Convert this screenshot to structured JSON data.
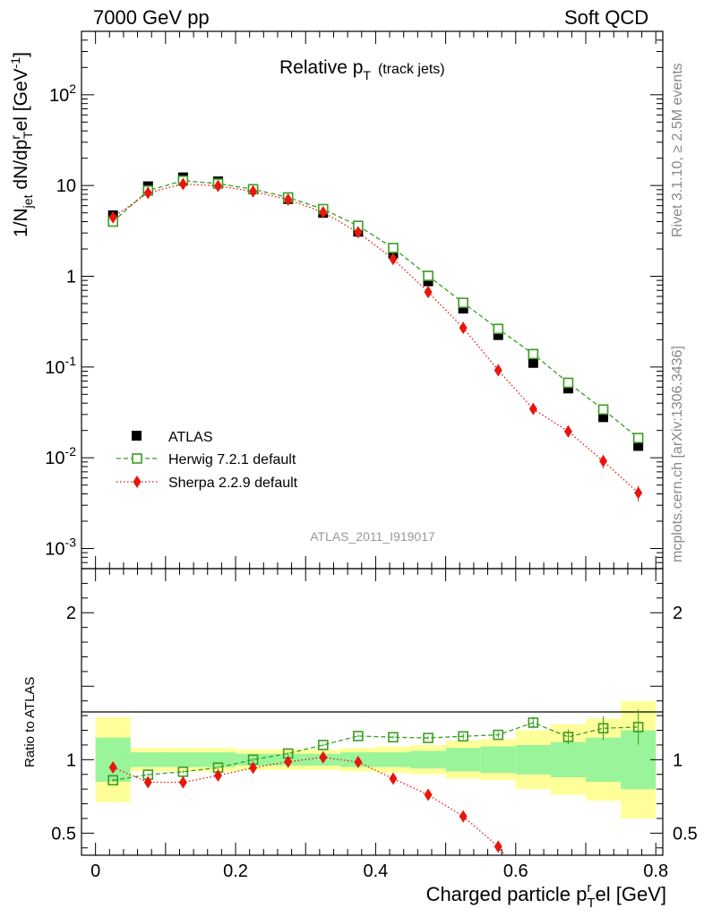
{
  "header": {
    "left": "7000 GeV pp",
    "right": "Soft QCD"
  },
  "side_labels": {
    "rivet": "Rivet 3.1.10, ≥ 2.5M events",
    "mcplots": "mcplots.cern.ch [arXiv:1306.3436]"
  },
  "chart_data": [
    {
      "type": "scatter",
      "title": "Relative pT (track jets)",
      "title_main": "Relative p",
      "title_sub": "T",
      "title_extra": "(track jets)",
      "analysis_label": "ATLAS_2011_I919017",
      "ylabel": "1/Njet dN/dprTel [GeV-1]",
      "yscale": "log",
      "ylim": [
        0.0006,
        500
      ],
      "xlim": [
        -0.02,
        0.81
      ],
      "grid": false,
      "legend_position": "bottom-left",
      "y_tick_labels": [
        "10^-3",
        "10^-2",
        "10^-1",
        "1",
        "10",
        "10^2"
      ],
      "x": [
        0.025,
        0.075,
        0.125,
        0.175,
        0.225,
        0.275,
        0.325,
        0.375,
        0.425,
        0.475,
        0.525,
        0.575,
        0.625,
        0.675,
        0.725,
        0.775
      ],
      "series": [
        {
          "name": "ATLAS",
          "style": "black filled square markers",
          "color": "#000000",
          "values": [
            4.7,
            9.8,
            12.3,
            11.1,
            9.1,
            7.1,
            5.0,
            3.1,
            1.78,
            0.88,
            0.44,
            0.225,
            0.111,
            0.058,
            0.028,
            0.0135
          ],
          "error_band_total": [
            0.29,
            0.08,
            0.08,
            0.08,
            0.07,
            0.07,
            0.07,
            0.08,
            0.09,
            0.1,
            0.13,
            0.14,
            0.2,
            0.24,
            0.28,
            0.4
          ],
          "error_band_stat": [
            0.15,
            0.05,
            0.05,
            0.05,
            0.04,
            0.04,
            0.04,
            0.05,
            0.05,
            0.06,
            0.08,
            0.09,
            0.1,
            0.12,
            0.15,
            0.2
          ]
        },
        {
          "name": "Herwig 7.2.1 default",
          "style": "green open squares, dashed line",
          "color": "#3a9d23",
          "values": [
            4.0,
            8.8,
            11.3,
            10.5,
            9.1,
            7.4,
            5.5,
            3.6,
            2.05,
            1.01,
            0.51,
            0.263,
            0.139,
            0.067,
            0.034,
            0.0165
          ],
          "errors": [
            0.1,
            0.15,
            0.2,
            0.2,
            0.15,
            0.12,
            0.1,
            0.07,
            0.04,
            0.02,
            0.01,
            0.005,
            0.003,
            0.002,
            0.0012,
            0.0009
          ]
        },
        {
          "name": "Sherpa 2.2.9 default",
          "style": "red filled diamonds, dotted line",
          "color": "#e8160c",
          "values": [
            4.45,
            8.3,
            10.4,
            9.9,
            8.6,
            7.0,
            5.08,
            3.05,
            1.55,
            0.67,
            0.27,
            0.092,
            0.0345,
            0.0195,
            0.0092,
            0.0041
          ],
          "errors": [
            0.1,
            0.15,
            0.2,
            0.2,
            0.15,
            0.12,
            0.1,
            0.07,
            0.04,
            0.02,
            0.01,
            0.004,
            0.003,
            0.002,
            0.0015,
            0.0008
          ]
        }
      ]
    },
    {
      "type": "scatter",
      "ylabel": "Ratio to ATLAS",
      "xlabel": "Charged particle pT el [GeV]",
      "xlabel_main": "Charged particle p",
      "xlabel_sup": "r",
      "xlabel_sub": "T",
      "xlabel_tail": "el [GeV]",
      "ylim": [
        0.35,
        2.3
      ],
      "xlim": [
        -0.02,
        0.81
      ],
      "reference_line": 1,
      "x_tick_labels": [
        "0",
        "0.2",
        "0.4",
        "0.6",
        "0.8"
      ],
      "y_tick_labels": [
        "0.5",
        "1",
        "2"
      ],
      "x": [
        0.025,
        0.075,
        0.125,
        0.175,
        0.225,
        0.275,
        0.325,
        0.375,
        0.425,
        0.475,
        0.525,
        0.575,
        0.625,
        0.675,
        0.725,
        0.775
      ],
      "series": [
        {
          "name": "Herwig 7.2.1 default",
          "color": "#3a9d23",
          "values": [
            0.86,
            0.898,
            0.918,
            0.946,
            1.0,
            1.042,
            1.1,
            1.161,
            1.153,
            1.148,
            1.159,
            1.169,
            1.252,
            1.155,
            1.214,
            1.222
          ],
          "errors": [
            0.01,
            0.01,
            0.01,
            0.01,
            0.01,
            0.01,
            0.01,
            0.01,
            0.01,
            0.01,
            0.02,
            0.02,
            0.04,
            0.05,
            0.08,
            0.12
          ]
        },
        {
          "name": "Sherpa 2.2.9 default",
          "color": "#e8160c",
          "values": [
            0.947,
            0.847,
            0.846,
            0.892,
            0.945,
            0.986,
            1.016,
            0.984,
            0.871,
            0.761,
            0.614,
            0.409
          ],
          "errors": [
            0.01,
            0.01,
            0.01,
            0.01,
            0.01,
            0.01,
            0.01,
            0.01,
            0.01,
            0.01,
            0.02,
            0.03
          ]
        }
      ]
    }
  ],
  "style": {
    "herwig_color": "#3a9d23",
    "sherpa_color": "#e8160c",
    "band_total_color": "#ffff9a",
    "band_stat_color": "#9af49a",
    "side_text_color": "#888888",
    "analysis_label_color": "#999999"
  }
}
